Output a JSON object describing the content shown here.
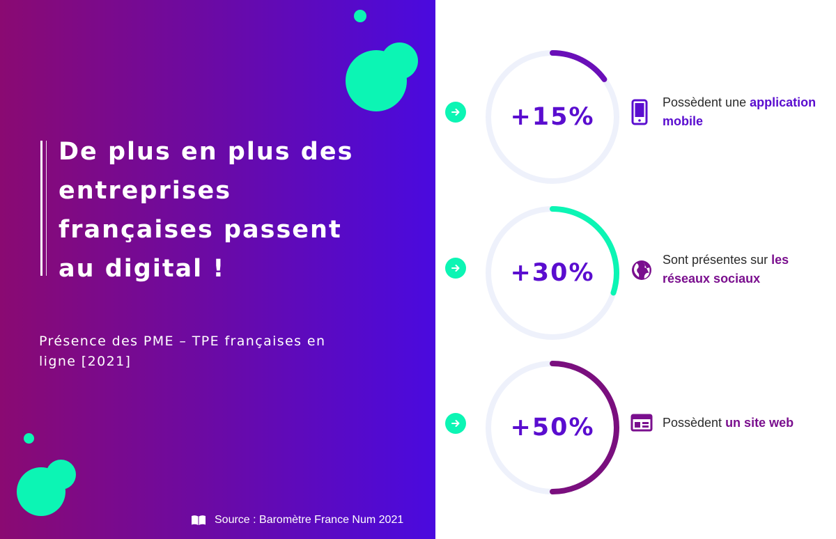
{
  "headline": "De plus en plus des entreprises françaises passent au digital !",
  "subtitle": "Présence des PME – TPE françaises en ligne [2021]",
  "source": "Source : Baromètre France Num 2021",
  "colors": {
    "gradient_start": "#8a0a72",
    "gradient_end": "#4a0adf",
    "accent_teal": "#0cf5b4",
    "percent_text": "#5a0dcf",
    "ring_track": "#eef1fb"
  },
  "stats": [
    {
      "value": "+15%",
      "fraction": 0.15,
      "arc_color": "#6a0fb8",
      "icon": "smartphone-icon",
      "text": "Possèdent une ",
      "highlight": "application mobile",
      "highlight_color": "#5a0dcf"
    },
    {
      "value": "+30%",
      "fraction": 0.3,
      "arc_color": "#0cf5b4",
      "icon": "globe-icon",
      "text": "Sont présentes sur ",
      "highlight": "les réseaux sociaux",
      "highlight_color": "#7a0f8e"
    },
    {
      "value": "+50%",
      "fraction": 0.5,
      "arc_color": "#7a0f7e",
      "icon": "browser-window-icon",
      "text": "Possèdent ",
      "highlight": "un site web",
      "highlight_color": "#7a0f8e"
    }
  ]
}
